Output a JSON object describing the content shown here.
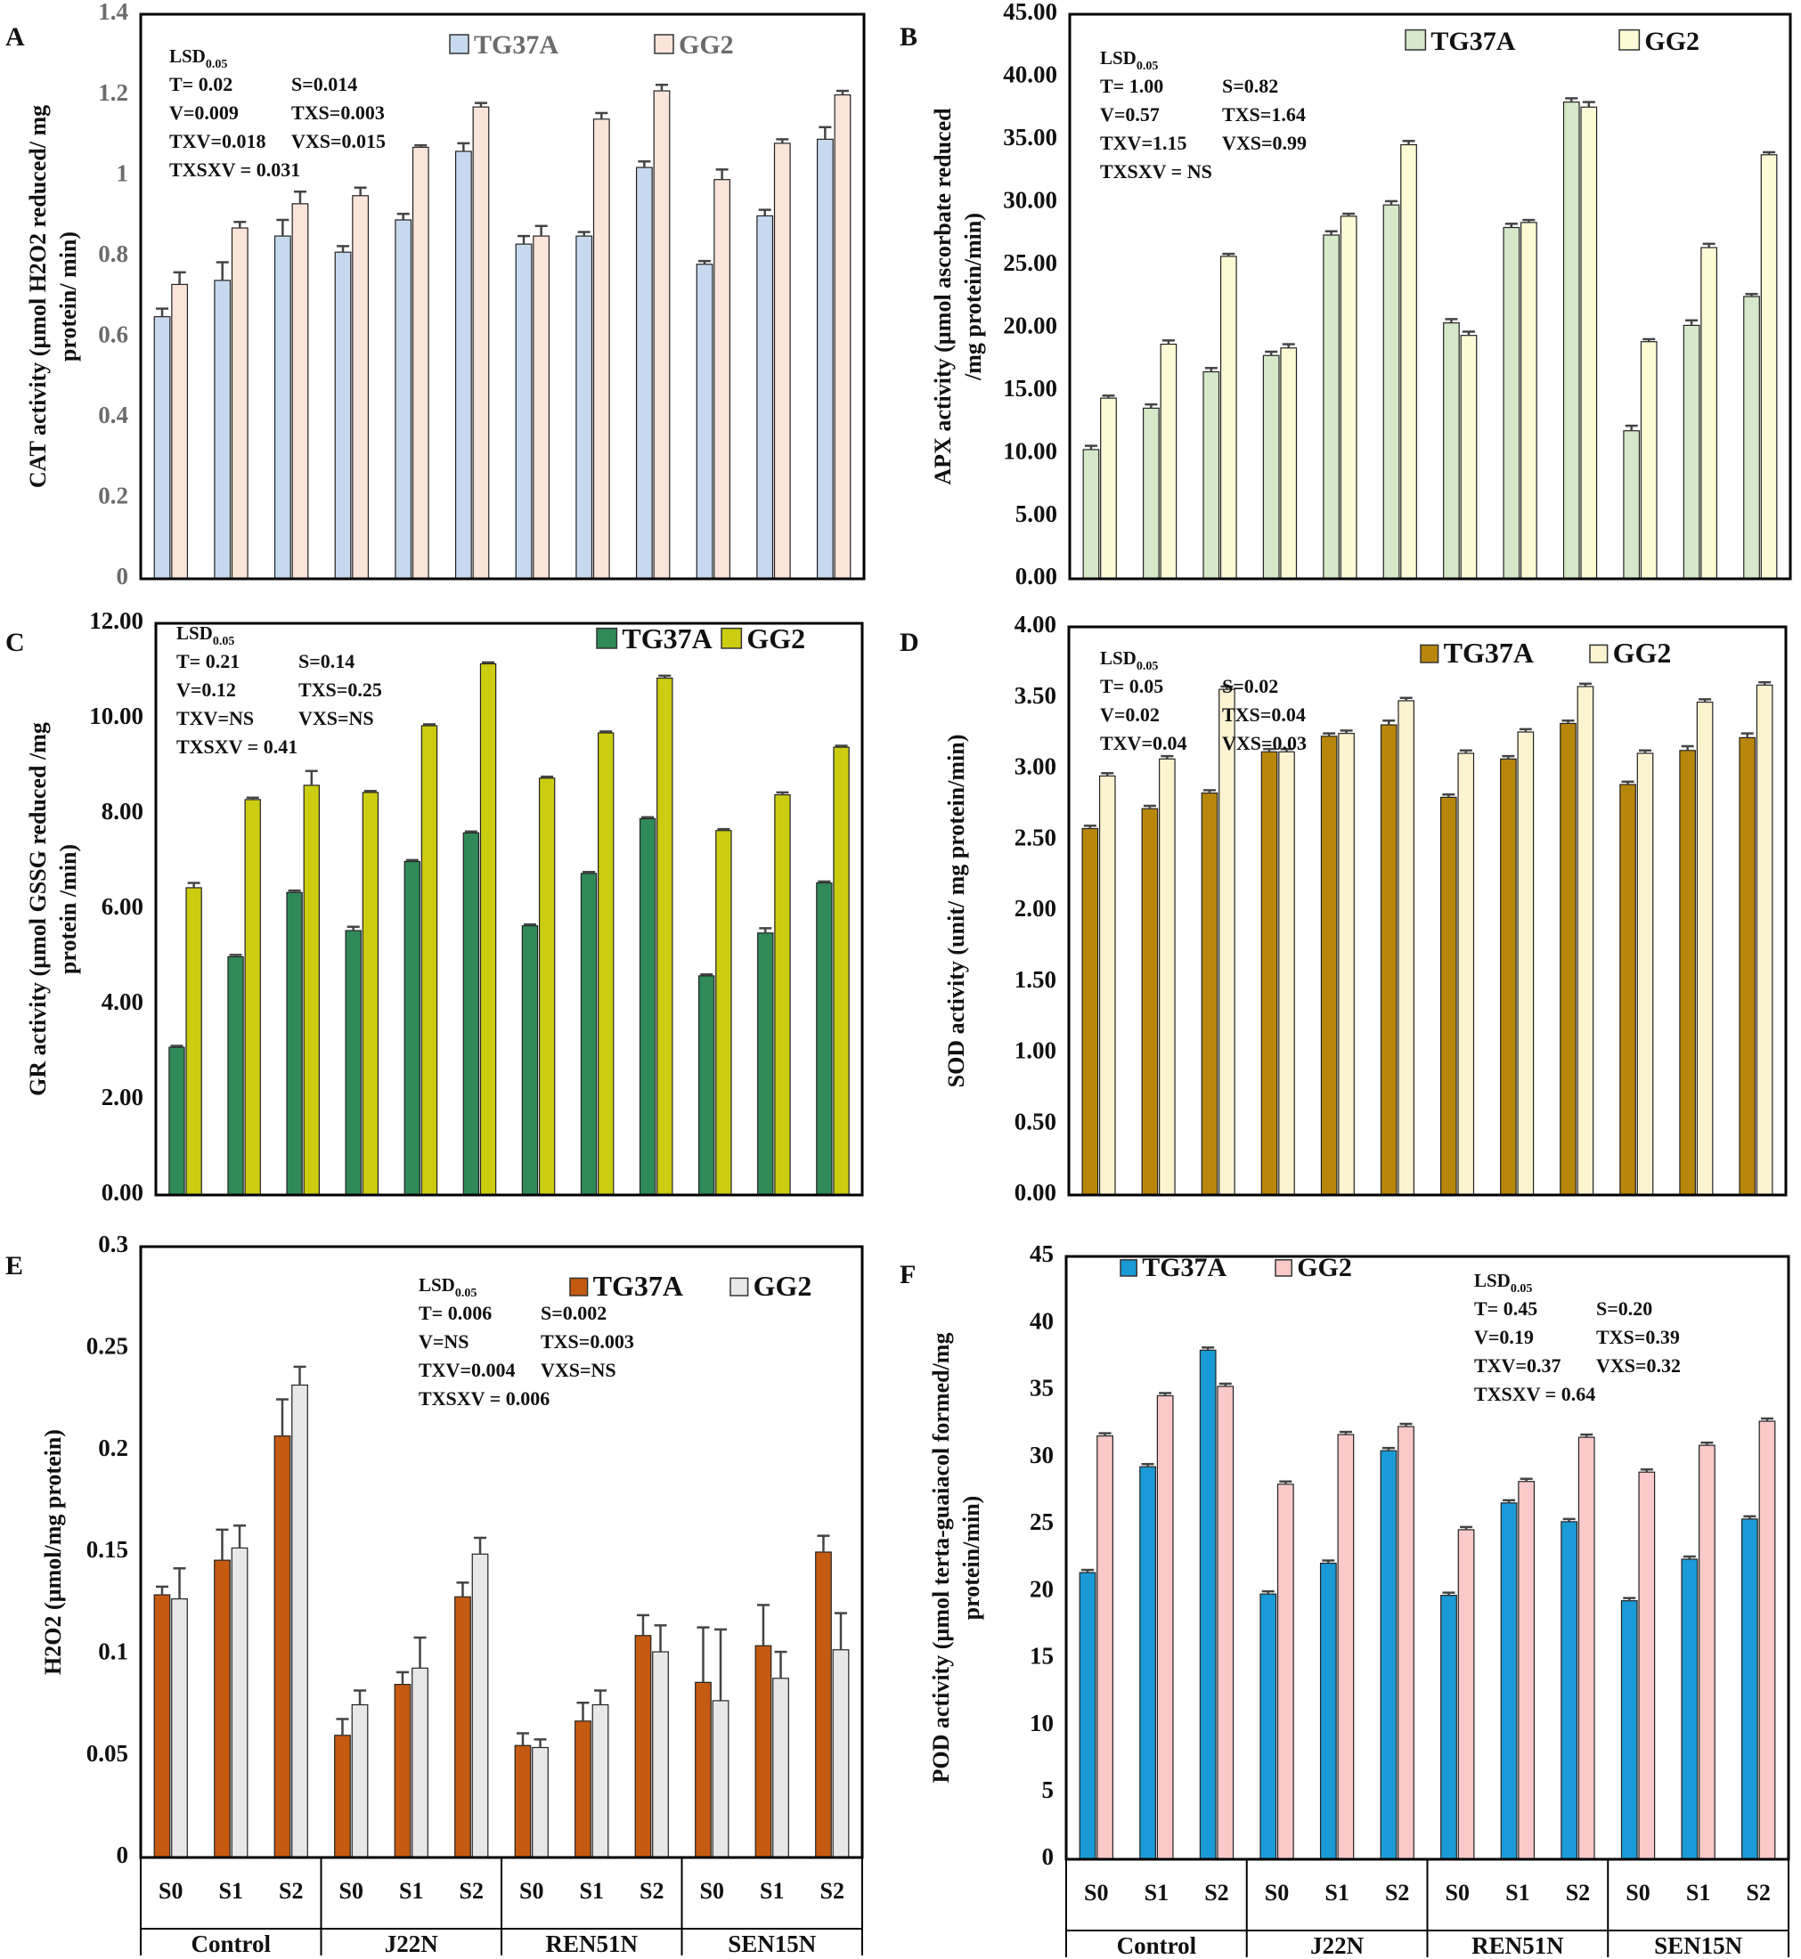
{
  "figure": {
    "x_groups": [
      "Control",
      "J22N",
      "REN51N",
      "SEN15N"
    ],
    "x_sublabels": [
      "S0",
      "S1",
      "S2",
      "S0",
      "S1",
      "S2",
      "S0",
      "S1",
      "S2",
      "S0",
      "S1",
      "S2"
    ]
  },
  "chart_data": [
    {
      "id": "A",
      "type": "bar",
      "panel_letter": "A",
      "ylabel_lines": [
        "CAT activity (µmol H2O2 reduced/ mg",
        "protein/ min)"
      ],
      "ylim": [
        0,
        1.4
      ],
      "yticks": [
        "0",
        "0.2",
        "0.4",
        "0.6",
        "0.8",
        "1",
        "1.2",
        "1.4"
      ],
      "tick_color": "#6b6b6b",
      "categories": [
        "Control S0",
        "Control S1",
        "Control S2",
        "J22N S0",
        "J22N S1",
        "J22N S2",
        "REN51N S0",
        "REN51N S1",
        "REN51N S2",
        "SEN15N S0",
        "SEN15N S1",
        "SEN15N S2"
      ],
      "series": [
        {
          "name": "TG37A",
          "color": "#c6d9ef",
          "values": [
            0.65,
            0.74,
            0.85,
            0.81,
            0.89,
            1.06,
            0.83,
            0.85,
            1.02,
            0.78,
            0.9,
            1.09
          ],
          "errors": [
            0.02,
            0.045,
            0.04,
            0.015,
            0.015,
            0.02,
            0.02,
            0.01,
            0.015,
            0.008,
            0.015,
            0.03
          ]
        },
        {
          "name": "GG2",
          "color": "#fbe4da",
          "values": [
            0.73,
            0.87,
            0.93,
            0.95,
            1.07,
            1.17,
            0.85,
            1.14,
            1.21,
            0.99,
            1.08,
            1.2
          ],
          "errors": [
            0.03,
            0.015,
            0.03,
            0.02,
            0.005,
            0.01,
            0.025,
            0.015,
            0.015,
            0.025,
            0.01,
            0.01
          ]
        }
      ],
      "legend_color": "#6b6b6b",
      "lsd": {
        "heading": "LSD",
        "sub": "0.05",
        "lines": [
          [
            "T= 0.02",
            "S=0.014"
          ],
          [
            "V=0.009",
            "TXS=0.003"
          ],
          [
            "TXV=0.018",
            "VXS=0.015"
          ],
          [
            "TXSXV = 0.031"
          ]
        ]
      }
    },
    {
      "id": "B",
      "type": "bar",
      "panel_letter": "B",
      "ylabel_lines": [
        "APX activity (µmol ascorbate reduced",
        "/mg protein/min)"
      ],
      "ylim": [
        0,
        45
      ],
      "yticks": [
        "0.00",
        "5.00",
        "10.00",
        "15.00",
        "20.00",
        "25.00",
        "30.00",
        "35.00",
        "40.00",
        "45.00"
      ],
      "tick_color": "#111111",
      "categories": [
        "Control S0",
        "Control S1",
        "Control S2",
        "J22N S0",
        "J22N S1",
        "J22N S2",
        "REN51N S0",
        "REN51N S1",
        "REN51N S2",
        "SEN15N S0",
        "SEN15N S1",
        "SEN15N S2"
      ],
      "series": [
        {
          "name": "TG37A",
          "color": "#d5e8c8",
          "values": [
            10.3,
            13.6,
            16.5,
            17.8,
            27.4,
            29.8,
            20.4,
            28.0,
            38.0,
            11.8,
            20.2,
            22.5
          ],
          "errors": [
            0.3,
            0.3,
            0.3,
            0.3,
            0.3,
            0.3,
            0.3,
            0.3,
            0.3,
            0.4,
            0.4,
            0.2
          ]
        },
        {
          "name": "GG2",
          "color": "#fdfbd6",
          "values": [
            14.4,
            18.7,
            25.7,
            18.4,
            28.9,
            34.6,
            19.4,
            28.4,
            37.6,
            18.9,
            26.4,
            33.8
          ],
          "errors": [
            0.2,
            0.3,
            0.2,
            0.3,
            0.2,
            0.3,
            0.3,
            0.2,
            0.4,
            0.2,
            0.3,
            0.2
          ]
        }
      ],
      "legend_color": "#111111",
      "lsd": {
        "heading": "LSD",
        "sub": "0.05",
        "lines": [
          [
            "T= 1.00",
            "S=0.82"
          ],
          [
            "V=0.57",
            "TXS=1.64"
          ],
          [
            "TXV=1.15",
            "VXS=0.99"
          ],
          [
            "TXSXV = NS"
          ]
        ]
      }
    },
    {
      "id": "C",
      "type": "bar",
      "panel_letter": "C",
      "ylabel_lines": [
        "GR activity (µmol GSSG reduced /mg",
        "protein /min)"
      ],
      "ylim": [
        0,
        12
      ],
      "yticks": [
        "0.00",
        "2.00",
        "4.00",
        "6.00",
        "8.00",
        "10.00",
        "12.00"
      ],
      "tick_color": "#111111",
      "categories": [
        "Control S0",
        "Control S1",
        "Control S2",
        "J22N S0",
        "J22N S1",
        "J22N S2",
        "REN51N S0",
        "REN51N S1",
        "REN51N S2",
        "SEN15N S0",
        "SEN15N S1",
        "SEN15N S2"
      ],
      "series": [
        {
          "name": "TG37A",
          "color": "#2f8a58",
          "values": [
            3.1,
            5.0,
            6.35,
            5.55,
            7.0,
            7.6,
            5.65,
            6.75,
            7.9,
            4.6,
            5.5,
            6.55
          ],
          "errors": [
            0.03,
            0.04,
            0.04,
            0.08,
            0.03,
            0.03,
            0.03,
            0.03,
            0.03,
            0.03,
            0.1,
            0.03
          ]
        },
        {
          "name": "GG2",
          "color": "#cccc11",
          "values": [
            6.45,
            8.3,
            8.6,
            8.45,
            9.85,
            11.15,
            8.75,
            9.7,
            10.85,
            7.65,
            8.4,
            9.4
          ],
          "errors": [
            0.1,
            0.04,
            0.3,
            0.03,
            0.03,
            0.03,
            0.03,
            0.03,
            0.05,
            0.03,
            0.05,
            0.03
          ]
        }
      ],
      "legend_color": "#111111",
      "lsd": {
        "heading": "LSD",
        "sub": "0.05",
        "lines": [
          [
            "T= 0.21",
            "S=0.14"
          ],
          [
            "V=0.12",
            "TXS=0.25"
          ],
          [
            "TXV=NS",
            "VXS=NS"
          ],
          [
            "TXSXV = 0.41"
          ]
        ]
      }
    },
    {
      "id": "D",
      "type": "bar",
      "panel_letter": "D",
      "ylabel_lines": [
        "SOD activity (unit/ mg protein/min)"
      ],
      "ylim": [
        0,
        4
      ],
      "yticks": [
        "0.00",
        "0.50",
        "1.00",
        "1.50",
        "2.00",
        "2.50",
        "3.00",
        "3.50",
        "4.00"
      ],
      "tick_color": "#111111",
      "categories": [
        "Control S0",
        "Control S1",
        "Control S2",
        "J22N S0",
        "J22N S1",
        "J22N S2",
        "REN51N S0",
        "REN51N S1",
        "REN51N S2",
        "SEN15N S0",
        "SEN15N S1",
        "SEN15N S2"
      ],
      "series": [
        {
          "name": "TG37A",
          "color": "#b8860b",
          "values": [
            2.58,
            2.72,
            2.83,
            3.12,
            3.23,
            3.31,
            2.8,
            3.07,
            3.32,
            2.89,
            3.13,
            3.22
          ],
          "errors": [
            0.02,
            0.02,
            0.02,
            0.02,
            0.02,
            0.03,
            0.02,
            0.02,
            0.02,
            0.02,
            0.03,
            0.03
          ]
        },
        {
          "name": "GG2",
          "color": "#fcf3d1",
          "values": [
            2.95,
            3.07,
            3.56,
            3.12,
            3.25,
            3.48,
            3.11,
            3.26,
            3.58,
            3.11,
            3.47,
            3.59
          ],
          "errors": [
            0.02,
            0.02,
            0.02,
            0.02,
            0.02,
            0.02,
            0.02,
            0.02,
            0.02,
            0.02,
            0.02,
            0.02
          ]
        }
      ],
      "legend_color": "#111111",
      "lsd": {
        "heading": "LSD",
        "sub": "0.05",
        "lines": [
          [
            "T= 0.05",
            "S=0.02"
          ],
          [
            "V=0.02",
            "TXS=0.04"
          ],
          [
            "TXV=0.04",
            "VXS=0.03"
          ]
        ]
      }
    },
    {
      "id": "E",
      "type": "bar",
      "panel_letter": "E",
      "ylabel_lines": [
        "H2O2 (µmol/mg protein)"
      ],
      "ylim": [
        0,
        0.3
      ],
      "yticks": [
        "0",
        "0.05",
        "0.1",
        "0.15",
        "0.2",
        "0.25",
        "0.3"
      ],
      "tick_color": "#111111",
      "categories": [
        "Control S0",
        "Control S1",
        "Control S2",
        "J22N S0",
        "J22N S1",
        "J22N S2",
        "REN51N S0",
        "REN51N S1",
        "REN51N S2",
        "SEN15N S0",
        "SEN15N S1",
        "SEN15N S2"
      ],
      "series": [
        {
          "name": "TG37A",
          "color": "#c55a11",
          "values": [
            0.129,
            0.146,
            0.207,
            0.06,
            0.085,
            0.128,
            0.055,
            0.067,
            0.109,
            0.086,
            0.104,
            0.15
          ],
          "errors": [
            0.004,
            0.015,
            0.018,
            0.008,
            0.006,
            0.007,
            0.006,
            0.009,
            0.01,
            0.027,
            0.02,
            0.008
          ]
        },
        {
          "name": "GG2",
          "color": "#e8e8e8",
          "values": [
            0.127,
            0.152,
            0.232,
            0.075,
            0.093,
            0.149,
            0.054,
            0.075,
            0.101,
            0.077,
            0.088,
            0.102
          ],
          "errors": [
            0.015,
            0.011,
            0.009,
            0.007,
            0.015,
            0.008,
            0.004,
            0.007,
            0.013,
            0.035,
            0.013,
            0.018
          ]
        }
      ],
      "legend_color": "#111111",
      "lsd": {
        "heading": "LSD",
        "sub": "0.05",
        "lines": [
          [
            "T= 0.006",
            "S=0.002"
          ],
          [
            "V=NS",
            "TXS=0.003"
          ],
          [
            "TXV=0.004",
            "VXS=NS"
          ],
          [
            "TXSXV = 0.006"
          ]
        ]
      }
    },
    {
      "id": "F",
      "type": "bar",
      "panel_letter": "F",
      "ylabel_lines": [
        "POD activity (µmol terta-guaiacol formed/mg",
        "protein/min)"
      ],
      "ylim": [
        0,
        45
      ],
      "yticks": [
        "0",
        "5",
        "10",
        "15",
        "20",
        "25",
        "30",
        "35",
        "40",
        "45"
      ],
      "tick_color": "#111111",
      "categories": [
        "Control S0",
        "Control S1",
        "Control S2",
        "J22N S0",
        "J22N S1",
        "J22N S2",
        "REN51N S0",
        "REN51N S1",
        "REN51N S2",
        "SEN15N S0",
        "SEN15N S1",
        "SEN15N S2"
      ],
      "series": [
        {
          "name": "TG37A",
          "color": "#1a9ad6",
          "values": [
            21.4,
            29.3,
            38.0,
            19.8,
            22.1,
            30.5,
            19.7,
            26.6,
            25.2,
            19.3,
            22.4,
            25.4
          ],
          "errors": [
            0.2,
            0.2,
            0.2,
            0.2,
            0.2,
            0.2,
            0.2,
            0.2,
            0.2,
            0.2,
            0.2,
            0.2
          ]
        },
        {
          "name": "GG2",
          "color": "#fac9c9",
          "values": [
            31.6,
            34.6,
            35.3,
            28.0,
            31.7,
            32.3,
            24.6,
            28.2,
            31.5,
            28.9,
            30.9,
            32.7
          ],
          "errors": [
            0.2,
            0.2,
            0.2,
            0.2,
            0.2,
            0.2,
            0.2,
            0.2,
            0.2,
            0.2,
            0.2,
            0.2
          ]
        }
      ],
      "legend_color": "#111111",
      "lsd": {
        "heading": "LSD",
        "sub": "0.05",
        "lines": [
          [
            "T= 0.45",
            "S=0.20"
          ],
          [
            "V=0.19",
            "TXS=0.39"
          ],
          [
            "TXV=0.37",
            "VXS=0.32"
          ],
          [
            "TXSXV = 0.64"
          ]
        ]
      }
    }
  ]
}
